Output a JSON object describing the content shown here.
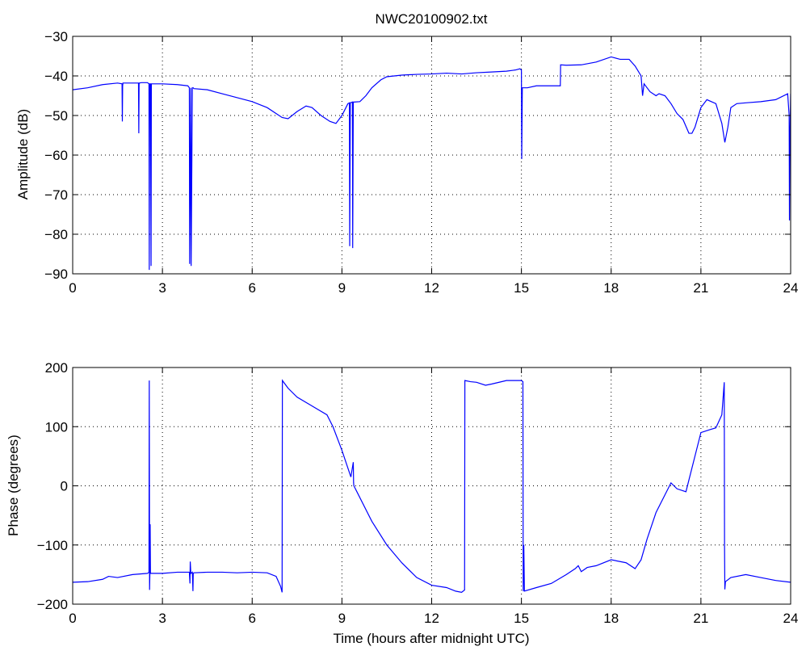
{
  "figure": {
    "title": "NWC20100902.txt"
  },
  "colors": {
    "line": "#0000ff",
    "axis": "#000000",
    "grid": "#000000",
    "background": "#ffffff"
  },
  "chart_data": [
    {
      "type": "line",
      "title": "NWC20100902.txt",
      "xlabel": "",
      "ylabel": "Amplitude (dB)",
      "xlim": [
        0,
        24
      ],
      "ylim": [
        -90,
        -30
      ],
      "xticks": [
        0,
        3,
        6,
        9,
        12,
        15,
        18,
        21,
        24
      ],
      "xtick_labels": [
        "0",
        "3",
        "6",
        "9",
        "12",
        "15",
        "18",
        "21",
        "24"
      ],
      "yticks": [
        -90,
        -80,
        -70,
        -60,
        -50,
        -40,
        -30
      ],
      "ytick_labels": [
        "−90",
        "−80",
        "−70",
        "−60",
        "−50",
        "−40",
        "−30"
      ],
      "grid": true,
      "series": [
        {
          "color": "#0000ff",
          "x": [
            0,
            0.5,
            1.0,
            1.5,
            1.65,
            1.66,
            1.67,
            1.68,
            2.0,
            2.2,
            2.21,
            2.22,
            2.23,
            2.3,
            2.5,
            2.55,
            2.56,
            2.57,
            2.6,
            2.62,
            2.63,
            2.65,
            3.0,
            3.5,
            3.85,
            3.9,
            3.91,
            3.95,
            3.96,
            4.0,
            4.02,
            4.03,
            4.05,
            4.5,
            5.0,
            5.5,
            6.0,
            6.5,
            7.0,
            7.2,
            7.5,
            7.8,
            8.0,
            8.3,
            8.6,
            8.8,
            9.0,
            9.2,
            9.25,
            9.26,
            9.28,
            9.35,
            9.36,
            9.38,
            9.4,
            9.6,
            9.8,
            10.0,
            10.3,
            10.5,
            11.0,
            11.5,
            12.0,
            12.5,
            13.0,
            13.5,
            14.0,
            14.5,
            14.8,
            14.95,
            15.0,
            15.01,
            15.03,
            15.05,
            15.2,
            15.5,
            16.0,
            16.3,
            16.31,
            16.5,
            17.0,
            17.5,
            18.0,
            18.3,
            18.6,
            18.8,
            19.0,
            19.05,
            19.1,
            19.2,
            19.3,
            19.5,
            19.6,
            19.8,
            20.0,
            20.2,
            20.4,
            20.6,
            20.7,
            20.8,
            21.0,
            21.2,
            21.5,
            21.7,
            21.8,
            21.9,
            22.0,
            22.2,
            22.5,
            23.0,
            23.5,
            23.9,
            23.95,
            23.96,
            23.97,
            24.0
          ],
          "y": [
            -43.5,
            -43,
            -42.2,
            -41.8,
            -42,
            -51.5,
            -42.5,
            -41.8,
            -41.8,
            -41.8,
            -54.5,
            -42,
            -41.8,
            -41.7,
            -41.7,
            -42,
            -89,
            -42,
            -42,
            -88,
            -42,
            -42,
            -42,
            -42.2,
            -42.5,
            -43,
            -87.5,
            -43,
            -88,
            -43,
            -43,
            -43,
            -43.2,
            -43.5,
            -44.5,
            -45.5,
            -46.5,
            -48,
            -50.5,
            -50.8,
            -49,
            -47.6,
            -48,
            -50,
            -51.5,
            -52,
            -50,
            -47,
            -46.8,
            -83,
            -46.8,
            -46.6,
            -83.5,
            -46.6,
            -46.6,
            -46.5,
            -45,
            -43,
            -41,
            -40.2,
            -39.8,
            -39.6,
            -39.5,
            -39.3,
            -39.5,
            -39.2,
            -39,
            -38.8,
            -38.5,
            -38.2,
            -38.5,
            -61,
            -43,
            -43,
            -43,
            -42.5,
            -42.5,
            -42.5,
            -37.2,
            -37.3,
            -37.2,
            -36.5,
            -35.2,
            -35.8,
            -35.8,
            -37.5,
            -40,
            -45,
            -42,
            -43,
            -44,
            -45,
            -44.5,
            -45,
            -47,
            -49.5,
            -51,
            -54.5,
            -54.5,
            -53,
            -48,
            -46,
            -47,
            -52,
            -56.8,
            -53,
            -48,
            -47,
            -46.8,
            -46.5,
            -46,
            -44.5,
            -50,
            -76.5,
            -60,
            -44.5
          ]
        }
      ]
    },
    {
      "type": "line",
      "title": "",
      "xlabel": "Time (hours after midnight UTC)",
      "ylabel": "Phase (degrees)",
      "xlim": [
        0,
        24
      ],
      "ylim": [
        -200,
        200
      ],
      "xticks": [
        0,
        3,
        6,
        9,
        12,
        15,
        18,
        21,
        24
      ],
      "xtick_labels": [
        "0",
        "3",
        "6",
        "9",
        "12",
        "15",
        "18",
        "21",
        "24"
      ],
      "yticks": [
        -200,
        -100,
        0,
        100,
        200
      ],
      "ytick_labels": [
        "−200",
        "−100",
        "0",
        "100",
        "200"
      ],
      "grid": true,
      "series": [
        {
          "color": "#0000ff",
          "x": [
            0,
            0.5,
            1.0,
            1.2,
            1.5,
            2.0,
            2.5,
            2.55,
            2.56,
            2.57,
            2.58,
            2.59,
            2.6,
            3.0,
            3.5,
            3.9,
            3.92,
            3.93,
            3.95,
            4.0,
            4.02,
            4.03,
            4.05,
            4.5,
            5.0,
            5.5,
            6.0,
            6.5,
            6.8,
            6.95,
            7.0,
            7.01,
            7.2,
            7.5,
            8.0,
            8.5,
            8.7,
            9.0,
            9.2,
            9.3,
            9.38,
            9.39,
            9.4,
            9.5,
            10.0,
            10.5,
            11.0,
            11.5,
            12.0,
            12.5,
            12.8,
            13.0,
            13.1,
            13.11,
            13.3,
            13.5,
            13.8,
            14.0,
            14.5,
            15.0,
            15.05,
            15.06,
            15.08,
            15.1,
            15.5,
            16.0,
            16.5,
            16.8,
            16.9,
            17.0,
            17.2,
            17.5,
            18.0,
            18.5,
            18.8,
            19.0,
            19.2,
            19.5,
            19.8,
            20.0,
            20.2,
            20.5,
            20.8,
            21.0,
            21.3,
            21.5,
            21.7,
            21.78,
            21.79,
            21.8,
            21.82,
            22.0,
            22.5,
            23.0,
            23.5,
            24.0
          ],
          "y": [
            -163,
            -162,
            -158,
            -153,
            -155,
            -150,
            -148,
            -146,
            178,
            -176,
            -150,
            -65,
            -148,
            -148,
            -146,
            -146,
            -165,
            -128,
            -148,
            -146,
            -178,
            -148,
            -147,
            -146,
            -146,
            -147,
            -146,
            -147,
            -153,
            -170,
            -180,
            178,
            165,
            150,
            135,
            120,
            100,
            60,
            30,
            15,
            40,
            5,
            0,
            -10,
            -60,
            -100,
            -130,
            -155,
            -168,
            -172,
            -178,
            -180,
            -176,
            178,
            176,
            175,
            170,
            172,
            178,
            178,
            176,
            -178,
            -100,
            -178,
            -172,
            -165,
            -150,
            -140,
            -135,
            -145,
            -138,
            -135,
            -125,
            -130,
            -140,
            -125,
            -90,
            -45,
            -15,
            5,
            -5,
            -10,
            50,
            90,
            95,
            98,
            120,
            175,
            -102,
            -175,
            -162,
            -155,
            -150,
            -155,
            -160,
            -163
          ]
        }
      ]
    }
  ]
}
